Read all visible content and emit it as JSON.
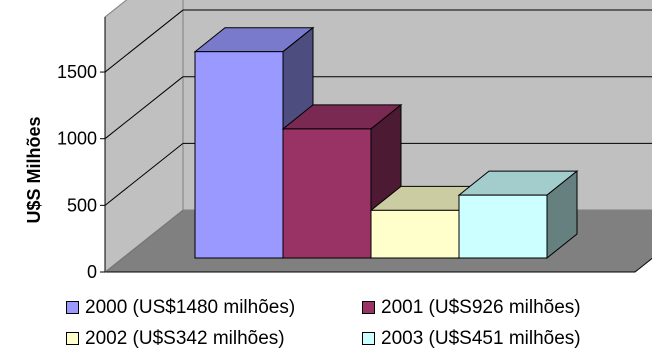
{
  "chart_data": {
    "type": "bar",
    "title": "",
    "xlabel": "",
    "ylabel": "U$S Milhões",
    "ylim": [
      0,
      1500
    ],
    "yticks": [
      0,
      500,
      1000,
      1500
    ],
    "grid": true,
    "legend_position": "bottom",
    "series": [
      {
        "name": "2000 (US$1480 milhões)",
        "value": 1480,
        "color": "#9999FF"
      },
      {
        "name": "2001 (U$S926 milhões)",
        "value": 926,
        "color": "#993366"
      },
      {
        "name": "2002 (U$S342 milhões)",
        "value": 342,
        "color": "#FFFFCC"
      },
      {
        "name": "2003 (U$S451 milhões)",
        "value": 451,
        "color": "#CCFFFF"
      }
    ]
  }
}
